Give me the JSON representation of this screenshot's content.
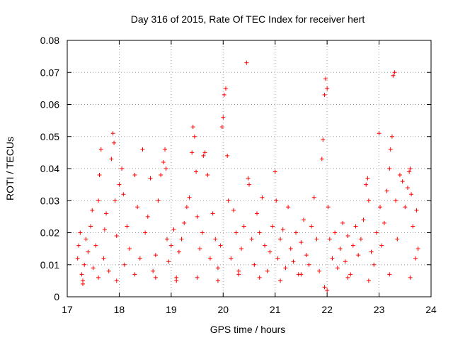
{
  "chart_data": {
    "type": "scatter",
    "title": "Day 316 of 2015, Rate Of TEC Index for receiver hert",
    "xlabel": "GPS time / hours",
    "ylabel": "ROTI / TECUs",
    "xlim": [
      17,
      24
    ],
    "ylim": [
      0,
      0.08
    ],
    "xticks": [
      "17",
      "18",
      "19",
      "20",
      "21",
      "22",
      "23",
      "24"
    ],
    "yticks": [
      "0",
      "0.01",
      "0.02",
      "0.03",
      "0.04",
      "0.05",
      "0.06",
      "0.07",
      "0.08"
    ],
    "grid": true,
    "marker": "plus",
    "color": "#ff0000",
    "series": [
      {
        "values": [
          [
            17.2,
            0.012
          ],
          [
            17.22,
            0.016
          ],
          [
            17.25,
            0.02
          ],
          [
            17.28,
            0.007
          ],
          [
            17.3,
            0.005
          ],
          [
            17.33,
            0.01
          ],
          [
            17.36,
            0.018
          ],
          [
            17.4,
            0.014
          ],
          [
            17.45,
            0.022
          ],
          [
            17.48,
            0.027
          ],
          [
            17.5,
            0.009
          ],
          [
            17.55,
            0.016
          ],
          [
            17.6,
            0.03
          ],
          [
            17.62,
            0.038
          ],
          [
            17.65,
            0.046
          ],
          [
            17.7,
            0.012
          ],
          [
            17.72,
            0.021
          ],
          [
            17.75,
            0.026
          ],
          [
            17.8,
            0.008
          ],
          [
            17.85,
            0.043
          ],
          [
            17.88,
            0.051
          ],
          [
            17.9,
            0.048
          ],
          [
            17.92,
            0.03
          ],
          [
            17.95,
            0.019
          ],
          [
            18.0,
            0.035
          ],
          [
            18.05,
            0.04
          ],
          [
            18.08,
            0.032
          ],
          [
            18.1,
            0.01
          ],
          [
            18.15,
            0.022
          ],
          [
            18.2,
            0.015
          ],
          [
            18.3,
            0.038
          ],
          [
            18.35,
            0.028
          ],
          [
            18.4,
            0.012
          ],
          [
            18.45,
            0.046
          ],
          [
            18.5,
            0.02
          ],
          [
            18.55,
            0.025
          ],
          [
            18.6,
            0.037
          ],
          [
            18.65,
            0.008
          ],
          [
            18.7,
            0.013
          ],
          [
            18.75,
            0.03
          ],
          [
            18.8,
            0.038
          ],
          [
            18.85,
            0.042
          ],
          [
            18.88,
            0.046
          ],
          [
            18.9,
            0.04
          ],
          [
            18.92,
            0.018
          ],
          [
            18.95,
            0.011
          ],
          [
            19.0,
            0.016
          ],
          [
            19.05,
            0.021
          ],
          [
            19.1,
            0.006
          ],
          [
            19.15,
            0.014
          ],
          [
            19.2,
            0.018
          ],
          [
            19.25,
            0.023
          ],
          [
            19.3,
            0.028
          ],
          [
            19.35,
            0.031
          ],
          [
            19.4,
            0.045
          ],
          [
            19.42,
            0.053
          ],
          [
            19.45,
            0.05
          ],
          [
            19.48,
            0.039
          ],
          [
            19.5,
            0.025
          ],
          [
            19.55,
            0.015
          ],
          [
            19.6,
            0.02
          ],
          [
            19.62,
            0.044
          ],
          [
            19.65,
            0.045
          ],
          [
            19.7,
            0.038
          ],
          [
            19.75,
            0.012
          ],
          [
            19.8,
            0.026
          ],
          [
            19.85,
            0.018
          ],
          [
            19.9,
            0.009
          ],
          [
            19.95,
            0.016
          ],
          [
            19.98,
            0.053
          ],
          [
            20.0,
            0.056
          ],
          [
            20.02,
            0.063
          ],
          [
            20.05,
            0.065
          ],
          [
            20.08,
            0.044
          ],
          [
            20.1,
            0.03
          ],
          [
            20.15,
            0.012
          ],
          [
            20.2,
            0.027
          ],
          [
            20.25,
            0.02
          ],
          [
            20.3,
            0.008
          ],
          [
            20.35,
            0.015
          ],
          [
            20.4,
            0.022
          ],
          [
            20.45,
            0.073
          ],
          [
            20.48,
            0.037
          ],
          [
            20.5,
            0.035
          ],
          [
            20.55,
            0.018
          ],
          [
            20.6,
            0.01
          ],
          [
            20.65,
            0.026
          ],
          [
            20.7,
            0.02
          ],
          [
            20.75,
            0.031
          ],
          [
            20.8,
            0.016
          ],
          [
            20.85,
            0.008
          ],
          [
            20.9,
            0.014
          ],
          [
            20.95,
            0.022
          ],
          [
            21.0,
            0.039
          ],
          [
            21.02,
            0.03
          ],
          [
            21.05,
            0.012
          ],
          [
            21.1,
            0.018
          ],
          [
            21.15,
            0.021
          ],
          [
            21.2,
            0.009
          ],
          [
            21.25,
            0.028
          ],
          [
            21.3,
            0.015
          ],
          [
            21.35,
            0.011
          ],
          [
            21.4,
            0.02
          ],
          [
            21.45,
            0.007
          ],
          [
            21.5,
            0.017
          ],
          [
            21.55,
            0.024
          ],
          [
            21.6,
            0.013
          ],
          [
            21.65,
            0.01
          ],
          [
            21.7,
            0.022
          ],
          [
            21.75,
            0.031
          ],
          [
            21.8,
            0.018
          ],
          [
            21.85,
            0.008
          ],
          [
            21.9,
            0.043
          ],
          [
            21.92,
            0.049
          ],
          [
            21.95,
            0.063
          ],
          [
            21.97,
            0.068
          ],
          [
            22.0,
            0.065
          ],
          [
            22.02,
            0.028
          ],
          [
            22.05,
            0.018
          ],
          [
            22.1,
            0.012
          ],
          [
            22.15,
            0.02
          ],
          [
            22.2,
            0.009
          ],
          [
            22.25,
            0.015
          ],
          [
            22.3,
            0.023
          ],
          [
            22.35,
            0.011
          ],
          [
            22.4,
            0.019
          ],
          [
            22.45,
            0.007
          ],
          [
            22.5,
            0.016
          ],
          [
            22.55,
            0.022
          ],
          [
            22.6,
            0.013
          ],
          [
            22.65,
            0.018
          ],
          [
            22.7,
            0.024
          ],
          [
            22.75,
            0.035
          ],
          [
            22.78,
            0.037
          ],
          [
            22.8,
            0.03
          ],
          [
            22.85,
            0.014
          ],
          [
            22.9,
            0.01
          ],
          [
            22.95,
            0.02
          ],
          [
            23.0,
            0.051
          ],
          [
            23.02,
            0.028
          ],
          [
            23.05,
            0.016
          ],
          [
            23.1,
            0.023
          ],
          [
            23.15,
            0.033
          ],
          [
            23.2,
            0.04
          ],
          [
            23.22,
            0.046
          ],
          [
            23.25,
            0.05
          ],
          [
            23.27,
            0.069
          ],
          [
            23.3,
            0.07
          ],
          [
            23.32,
            0.03
          ],
          [
            23.35,
            0.018
          ],
          [
            23.4,
            0.038
          ],
          [
            23.45,
            0.036
          ],
          [
            23.5,
            0.028
          ],
          [
            23.55,
            0.034
          ],
          [
            23.58,
            0.039
          ],
          [
            23.6,
            0.04
          ],
          [
            23.62,
            0.032
          ],
          [
            23.65,
            0.022
          ],
          [
            23.7,
            0.012
          ],
          [
            23.72,
            0.027
          ],
          [
            23.75,
            0.015
          ],
          [
            17.3,
            0.004
          ],
          [
            17.6,
            0.006
          ],
          [
            17.95,
            0.005
          ],
          [
            18.3,
            0.007
          ],
          [
            18.7,
            0.006
          ],
          [
            19.1,
            0.005
          ],
          [
            19.5,
            0.006
          ],
          [
            19.9,
            0.005
          ],
          [
            20.3,
            0.007
          ],
          [
            20.7,
            0.006
          ],
          [
            21.1,
            0.005
          ],
          [
            21.5,
            0.007
          ],
          [
            21.95,
            0.003
          ],
          [
            22.0,
            0.002
          ],
          [
            22.4,
            0.006
          ],
          [
            22.8,
            0.005
          ],
          [
            23.2,
            0.007
          ],
          [
            23.6,
            0.006
          ]
        ]
      }
    ]
  }
}
